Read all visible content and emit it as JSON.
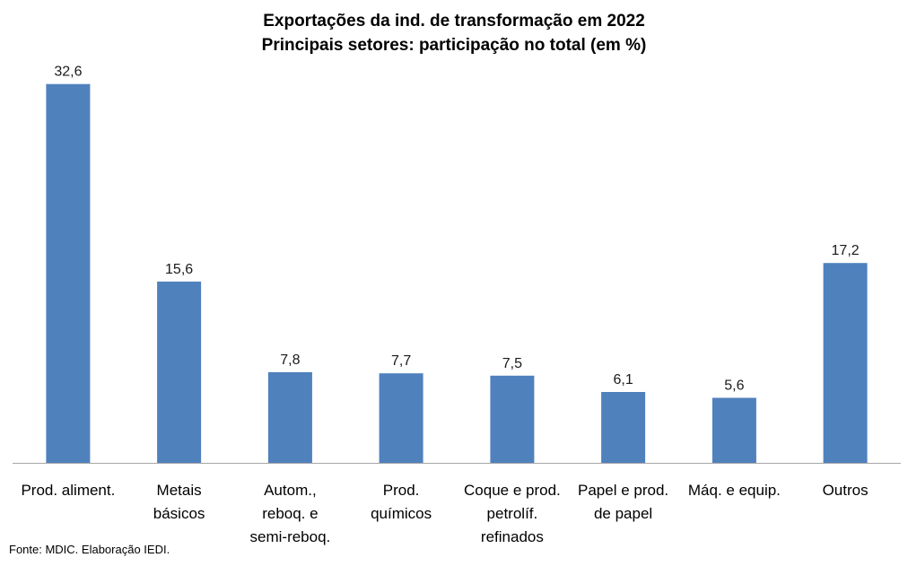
{
  "chart_data": {
    "type": "bar",
    "title": "Exportações da ind. de transformação em 2022",
    "subtitle": "Principais setores: participação no total (em %)",
    "categories": [
      [
        "Prod. aliment."
      ],
      [
        "Metais",
        "básicos"
      ],
      [
        "Autom.,",
        "reboq. e",
        "semi-reboq."
      ],
      [
        "Prod.",
        "químicos"
      ],
      [
        "Coque e prod.",
        "petrolíf.",
        "refinados"
      ],
      [
        "Papel e prod.",
        "de papel"
      ],
      [
        "Máq. e equip."
      ],
      [
        "Outros"
      ]
    ],
    "values": [
      32.6,
      15.6,
      7.8,
      7.7,
      7.5,
      6.1,
      5.6,
      17.2
    ],
    "value_labels": [
      "32,6",
      "15,6",
      "7,8",
      "7,7",
      "7,5",
      "6,1",
      "5,6",
      "17,2"
    ],
    "ylim": [
      0,
      33.5
    ],
    "bar_color": "#4f81bd",
    "axis_color": "#a6a6a6",
    "grid": false,
    "legend": "none"
  },
  "source": "Fonte: MDIC. Elaboração IEDI."
}
